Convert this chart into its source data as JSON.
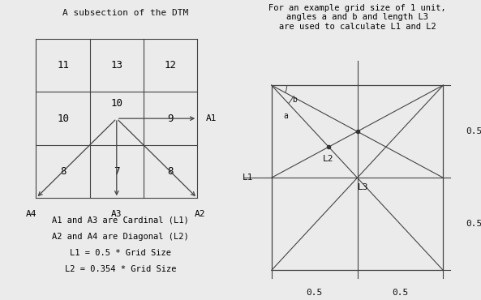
{
  "left_title": "A subsection of the DTM",
  "right_title": "For an example grid size of 1 unit,\nangles a and b and length L3\nare used to calculate L1 and L2",
  "grid_values": [
    [
      11,
      13,
      12
    ],
    [
      10,
      10,
      9
    ],
    [
      8,
      7,
      8
    ]
  ],
  "text_lines": [
    "A1 and A3 are Cardinal (L1)",
    "A2 and A4 are Diagonal (L2)",
    "L1 = 0.5 * Grid Size",
    "L2 = 0.354 * Grid Size"
  ],
  "bg_color": "#ebebeb",
  "line_color": "#444444",
  "font_color": "#111111",
  "fontsize_title": 8,
  "fontsize_grid": 9,
  "fontsize_label": 8,
  "fontsize_text": 7.5
}
